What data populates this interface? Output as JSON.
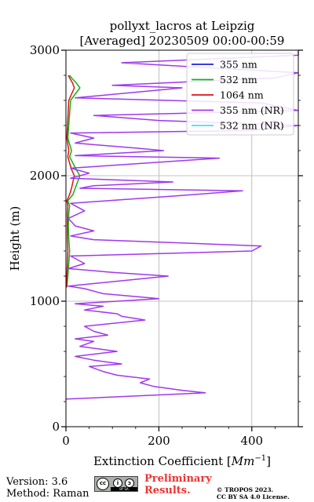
{
  "chart_data": {
    "type": "line",
    "title_line1": "pollyxt_lacros at Leipzig",
    "title_line2": "[Averaged] 20230509 00:00-00:59",
    "xlabel_text": "Extinction Coefficient [",
    "xlabel_unit": "Mm",
    "xlabel_exp": "−1",
    "xlabel_close": "]",
    "ylabel": "Height (m)",
    "xlim": [
      0,
      500
    ],
    "ylim": [
      0,
      3000
    ],
    "xticks": [
      "0",
      "200",
      "400"
    ],
    "yticks": [
      "0",
      "1000",
      "2000",
      "3000"
    ],
    "grid": true,
    "legend_position": "top-right",
    "series": [
      {
        "name": "355 nm",
        "color": "#1f1fe0",
        "points": []
      },
      {
        "name": "532 nm",
        "color": "#11b311",
        "points": [
          [
            2,
            1110
          ],
          [
            4,
            1200
          ],
          [
            6,
            1300
          ],
          [
            8,
            1400
          ],
          [
            6,
            1500
          ],
          [
            5,
            1600
          ],
          [
            6,
            1700
          ],
          [
            8,
            1760
          ],
          [
            4,
            1800
          ],
          [
            15,
            1850
          ],
          [
            20,
            1900
          ],
          [
            25,
            1950
          ],
          [
            30,
            2000
          ],
          [
            22,
            2050
          ],
          [
            15,
            2100
          ],
          [
            8,
            2150
          ],
          [
            12,
            2200
          ],
          [
            8,
            2250
          ],
          [
            4,
            2300
          ],
          [
            10,
            2600
          ],
          [
            20,
            2650
          ],
          [
            30,
            2700
          ],
          [
            22,
            2740
          ],
          [
            12,
            2780
          ],
          [
            8,
            2800
          ]
        ]
      },
      {
        "name": "1064 nm",
        "color": "#e01111",
        "points": [
          [
            1,
            1110
          ],
          [
            2,
            1200
          ],
          [
            3,
            1300
          ],
          [
            4,
            1400
          ],
          [
            3,
            1500
          ],
          [
            3,
            1600
          ],
          [
            3,
            1700
          ],
          [
            4,
            1760
          ],
          [
            2,
            1800
          ],
          [
            8,
            1850
          ],
          [
            12,
            1900
          ],
          [
            15,
            1950
          ],
          [
            18,
            2000
          ],
          [
            12,
            2050
          ],
          [
            8,
            2100
          ],
          [
            4,
            2150
          ],
          [
            6,
            2200
          ],
          [
            4,
            2250
          ],
          [
            2,
            2300
          ],
          [
            6,
            2600
          ],
          [
            12,
            2650
          ],
          [
            18,
            2700
          ],
          [
            14,
            2740
          ],
          [
            8,
            2780
          ],
          [
            5,
            2800
          ]
        ]
      },
      {
        "name": "355 nm (NR)",
        "color": "#a038ee",
        "points": [
          [
            0,
            220
          ],
          [
            300,
            270
          ],
          [
            250,
            290
          ],
          [
            190,
            320
          ],
          [
            160,
            350
          ],
          [
            180,
            380
          ],
          [
            110,
            410
          ],
          [
            80,
            440
          ],
          [
            50,
            480
          ],
          [
            120,
            500
          ],
          [
            60,
            530
          ],
          [
            20,
            560
          ],
          [
            110,
            600
          ],
          [
            30,
            640
          ],
          [
            60,
            680
          ],
          [
            20,
            700
          ],
          [
            90,
            730
          ],
          [
            60,
            760
          ],
          [
            40,
            800
          ],
          [
            170,
            850
          ],
          [
            120,
            880
          ],
          [
            110,
            900
          ],
          [
            40,
            930
          ],
          [
            80,
            960
          ],
          [
            20,
            980
          ],
          [
            200,
            1020
          ],
          [
            80,
            1060
          ],
          [
            40,
            1100
          ],
          [
            5,
            1120
          ],
          [
            220,
            1200
          ],
          [
            100,
            1230
          ],
          [
            5,
            1260
          ],
          [
            40,
            1300
          ],
          [
            10,
            1360
          ],
          [
            400,
            1400
          ],
          [
            420,
            1440
          ],
          [
            60,
            1490
          ],
          [
            10,
            1520
          ],
          [
            60,
            1560
          ],
          [
            20,
            1600
          ],
          [
            5,
            1660
          ],
          [
            40,
            1720
          ],
          [
            10,
            1780
          ],
          [
            240,
            1840
          ],
          [
            380,
            1880
          ],
          [
            30,
            1900
          ],
          [
            60,
            1920
          ],
          [
            230,
            1950
          ],
          [
            10,
            1980
          ],
          [
            50,
            2020
          ],
          [
            10,
            2060
          ],
          [
            170,
            2100
          ],
          [
            330,
            2140
          ],
          [
            20,
            2160
          ],
          [
            210,
            2200
          ],
          [
            150,
            2220
          ],
          [
            20,
            2260
          ],
          [
            60,
            2300
          ],
          [
            10,
            2340
          ],
          [
            400,
            2360
          ],
          [
            500,
            2400
          ],
          [
            200,
            2440
          ],
          [
            60,
            2480
          ],
          [
            500,
            2520
          ],
          [
            420,
            2580
          ],
          [
            20,
            2620
          ],
          [
            250,
            2700
          ],
          [
            100,
            2720
          ],
          [
            450,
            2780
          ],
          [
            500,
            2820
          ],
          [
            120,
            2900
          ],
          [
            500,
            2960
          ],
          [
            500,
            3000
          ]
        ]
      },
      {
        "name": "532 nm (NR)",
        "color": "#40e0f0",
        "points": []
      }
    ]
  },
  "footer": {
    "version": "Version: 3.6",
    "method": "Method: Raman",
    "prelim_line1": "Preliminary",
    "prelim_line2": "Results.",
    "copyright_line1": "© TROPOS 2023.",
    "copyright_line2": "CC BY SA 4.0 License.",
    "badge_cc": "cc",
    "badge_by": "i",
    "badge_sa": "ↄ",
    "badge_strip": "BY   SA"
  }
}
